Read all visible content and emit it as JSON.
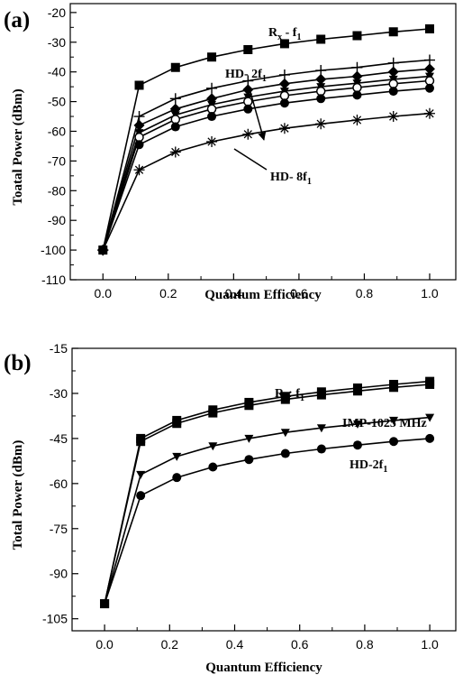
{
  "chart_data": [
    {
      "panel_label": "(a)",
      "type": "line",
      "xlabel": "Quantum Efficiency",
      "ylabel": "Toatal Power (dBm)",
      "xlim": [
        -0.1,
        1.08
      ],
      "ylim": [
        -110,
        -17
      ],
      "xticks": [
        "0.0",
        "0.2",
        "0.4",
        "0.6",
        "0.8",
        "1.0"
      ],
      "yticks": [
        "-20",
        "-30",
        "-40",
        "-50",
        "-60",
        "-70",
        "-80",
        "-90",
        "-100",
        "-110"
      ],
      "x": [
        0.0,
        0.111,
        0.222,
        0.333,
        0.444,
        0.556,
        0.667,
        0.778,
        0.889,
        1.0
      ],
      "series": [
        {
          "marker": "square",
          "values": [
            -100,
            -44.5,
            -38.5,
            -35,
            -32.5,
            -30.5,
            -29,
            -27.8,
            -26.5,
            -25.5
          ]
        },
        {
          "marker": "plus",
          "values": [
            -100,
            -55,
            -49,
            -45.5,
            -43,
            -41,
            -39.5,
            -38.5,
            -37,
            -36
          ]
        },
        {
          "marker": "diamond",
          "values": [
            -100,
            -58,
            -52.5,
            -49,
            -46,
            -44,
            -42.5,
            -41.5,
            -40,
            -39
          ]
        },
        {
          "marker": "triangle",
          "values": [
            -100,
            -60.5,
            -54.5,
            -51,
            -48.5,
            -46.5,
            -45,
            -43.8,
            -42.5,
            -41.5
          ]
        },
        {
          "marker": "circle-open",
          "values": [
            -100,
            -62,
            -56,
            -52.5,
            -50,
            -48,
            -46.5,
            -45.3,
            -44,
            -43
          ]
        },
        {
          "marker": "circle",
          "values": [
            -100,
            -64.5,
            -58.5,
            -55,
            -52.5,
            -50.5,
            -49,
            -47.8,
            -46.5,
            -45.5
          ]
        },
        {
          "marker": "asterisk",
          "values": [
            -100,
            -73,
            -67,
            -63.5,
            -61,
            -59,
            -57.5,
            -56.2,
            -55,
            -54
          ]
        }
      ],
      "annotations": {
        "rx": {
          "main": "R",
          "sub": "x",
          "tail": " - f",
          "sub2": "1"
        },
        "hd2": {
          "main": "HD- 2f",
          "sub": "1"
        },
        "hd8": {
          "main": "HD- 8f",
          "sub": "1"
        }
      }
    },
    {
      "panel_label": "(b)",
      "type": "line",
      "xlabel": "Quantum Efficiency",
      "ylabel": "Total Power (dBm)",
      "xlim": [
        -0.1,
        1.08
      ],
      "ylim": [
        -109,
        -15
      ],
      "xticks": [
        "0.0",
        "0.2",
        "0.4",
        "0.6",
        "0.8",
        "1.0"
      ],
      "yticks": [
        "-15",
        "-30",
        "-45",
        "-60",
        "-75",
        "-90",
        "-105"
      ],
      "x": [
        0.0,
        0.111,
        0.222,
        0.333,
        0.444,
        0.556,
        0.667,
        0.778,
        0.889,
        1.0
      ],
      "series": [
        {
          "marker": "square",
          "values": [
            -100,
            -45,
            -39,
            -35.5,
            -33,
            -31,
            -29.5,
            -28.2,
            -27,
            -26
          ]
        },
        {
          "marker": "square",
          "values": [
            -100,
            -46,
            -40,
            -36.5,
            -34,
            -32,
            -30.5,
            -29.2,
            -28,
            -27
          ]
        },
        {
          "marker": "triangle",
          "values": [
            -100,
            -57,
            -51,
            -47.5,
            -45,
            -43,
            -41.5,
            -40.2,
            -39,
            -38
          ]
        },
        {
          "marker": "circle",
          "values": [
            -100,
            -64,
            -58,
            -54.5,
            -52,
            -50,
            -48.5,
            -47.2,
            -46,
            -45
          ]
        }
      ],
      "annotations": {
        "rx": {
          "main": "R",
          "sub": "x",
          "tail": ": f",
          "sub2": "1"
        },
        "imp": {
          "text": "IMP-1025 MHz"
        },
        "hd2": {
          "main": "HD-2f",
          "sub": "1"
        }
      }
    }
  ]
}
